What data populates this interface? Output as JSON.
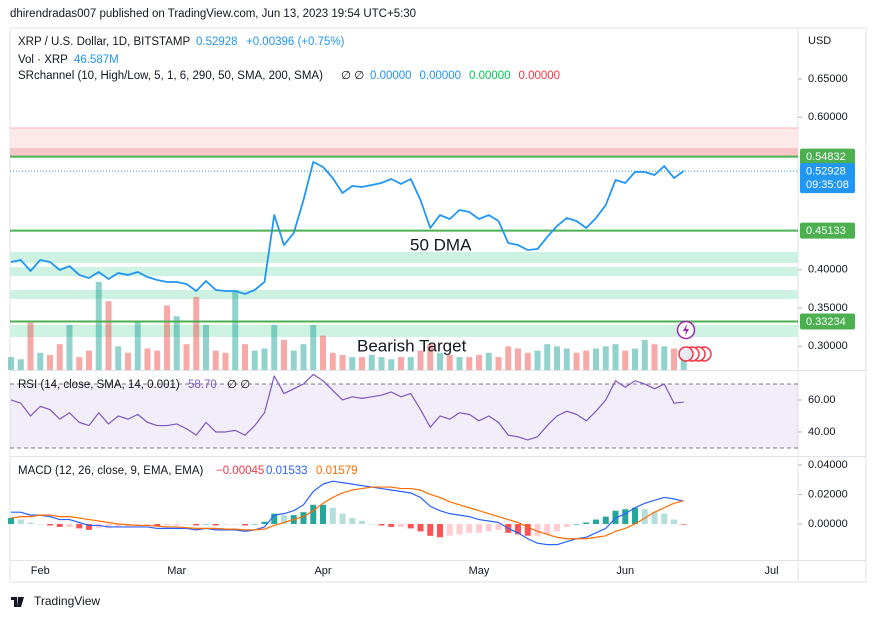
{
  "chart_data": {
    "type": "line",
    "publisher": "dhirendradas007 published on TradingView.com, Jun 13, 2023 19:54 UTC+5:30",
    "title": "XRP / U.S. Dollar, 1D, BITSTAMP",
    "last_price": "0.52928",
    "change": "+0.00396 (+0.75%)",
    "volume_legend": "Vol · XRP",
    "volume_last": "46.587M",
    "indicator_legend": "SRchannel (10, High/Low, 5, 1, 6, 290, 50, SMA, 200, SMA)",
    "indicator_flags": "∅ ∅",
    "indicator_values": [
      "0.00000",
      "0.00000",
      "0.00000",
      "0.00000"
    ],
    "indicator_colors": [
      "#2196f3",
      "#2196f3",
      "#00c853",
      "#f23645"
    ],
    "currency": "USD",
    "annotations": [
      "50 DMA",
      "Bearish Target"
    ],
    "footer": "TradingView",
    "grid": false,
    "categories": [
      null,
      null,
      null,
      "Feb",
      null,
      null,
      null,
      null,
      null,
      null,
      null,
      null,
      null,
      null,
      null,
      null,
      null,
      "Mar",
      null,
      null,
      null,
      null,
      null,
      null,
      null,
      null,
      null,
      null,
      null,
      null,
      null,
      null,
      "Apr",
      null,
      null,
      null,
      null,
      null,
      null,
      null,
      null,
      null,
      null,
      null,
      null,
      null,
      null,
      null,
      "May",
      null,
      null,
      null,
      null,
      null,
      null,
      null,
      null,
      null,
      null,
      null,
      null,
      null,
      null,
      "Jun",
      null,
      null,
      null,
      null,
      null,
      null,
      null,
      null,
      null,
      null,
      null,
      null,
      null,
      null,
      "Jul",
      null,
      null
    ],
    "series": [
      {
        "name": "XRP",
        "color": "#2196f3",
        "values": [
          0.4103,
          0.4129,
          0.3985,
          0.4129,
          0.4103,
          0.3998,
          0.405,
          0.3933,
          0.3893,
          0.3972,
          0.388,
          0.3959,
          0.3933,
          0.3972,
          0.3906,
          0.3867,
          0.3841,
          0.3841,
          0.3815,
          0.3723,
          0.3854,
          0.3736,
          0.3723,
          0.3723,
          0.3684,
          0.3736,
          0.3841,
          0.4718,
          0.4325,
          0.4483,
          0.4915,
          0.5413,
          0.5347,
          0.5203,
          0.5007,
          0.5098,
          0.5085,
          0.5111,
          0.5138,
          0.519,
          0.5125,
          0.519,
          0.4915,
          0.4548,
          0.4718,
          0.4666,
          0.4784,
          0.4758,
          0.4666,
          0.4718,
          0.464,
          0.4352,
          0.4325,
          0.426,
          0.4273,
          0.443,
          0.4574,
          0.4679,
          0.464,
          0.4548,
          0.4679,
          0.4849,
          0.5177,
          0.5138,
          0.5282,
          0.5282,
          0.5242,
          0.536,
          0.5203,
          0.52928,
          null,
          null,
          null,
          null,
          null,
          null,
          null,
          null,
          null,
          null,
          null
        ]
      }
    ],
    "volume": {
      "color_up": "rgba(38,166,154,0.5)",
      "color_down": "rgba(239,83,80,0.5)",
      "values": [
        30,
        25,
        110,
        40,
        35,
        60,
        105,
        30,
        45,
        205,
        160,
        55,
        40,
        115,
        50,
        45,
        150,
        125,
        60,
        170,
        105,
        45,
        40,
        185,
        60,
        45,
        50,
        105,
        70,
        45,
        60,
        105,
        80,
        40,
        35,
        30,
        30,
        35,
        30,
        25,
        30,
        30,
        45,
        60,
        40,
        35,
        30,
        30,
        35,
        40,
        30,
        55,
        50,
        40,
        45,
        60,
        55,
        50,
        40,
        45,
        50,
        55,
        60,
        45,
        50,
        70,
        60,
        55,
        50,
        46.587,
        null,
        null,
        null,
        null,
        null,
        null,
        null,
        null,
        null,
        null,
        null
      ]
    },
    "ylim": [
      0.2688,
      0.7168
    ],
    "yticks": [
      {
        "value": 0.65,
        "label": "0.65000"
      },
      {
        "value": 0.6,
        "label": "0.60000"
      },
      {
        "value": 0.4,
        "label": "0.40000"
      },
      {
        "value": 0.35,
        "label": "0.35000"
      },
      {
        "value": 0.3,
        "label": "0.30000"
      }
    ],
    "levels": [
      {
        "value": 0.54832,
        "color": "#4caf50"
      },
      {
        "value": 0.45133,
        "color": "#4caf50"
      },
      {
        "value": 0.33234,
        "color": "#4caf50"
      }
    ],
    "current_price": {
      "value": 0.52928,
      "countdown": "09:35:08",
      "color": "#2196f3"
    },
    "rsi": {
      "legend": "RSI (14, close, SMA, 14, 0.001)",
      "value_label": "58.70",
      "flags": "∅ ∅",
      "color": "#7e57c2",
      "values": [
        60,
        58,
        50,
        56,
        54,
        48,
        52,
        46,
        44,
        52,
        45,
        50,
        48,
        51,
        46,
        44,
        44,
        45,
        42,
        38,
        46,
        40,
        40,
        41,
        38,
        44,
        52,
        75,
        64,
        67,
        70,
        76,
        72,
        66,
        60,
        62,
        61,
        62,
        63,
        65,
        62,
        64,
        54,
        43,
        50,
        48,
        52,
        51,
        47,
        50,
        46,
        38,
        37,
        35,
        37,
        44,
        50,
        53,
        51,
        47,
        53,
        60,
        72,
        68,
        72,
        70,
        67,
        70,
        58,
        58.7,
        null,
        null,
        null,
        null,
        null,
        null,
        null,
        null,
        null,
        null,
        null
      ],
      "ylim": [
        25.6,
        77.5
      ],
      "yticks": [
        {
          "value": 60,
          "label": "60.00"
        },
        {
          "value": 40,
          "label": "40.00"
        }
      ],
      "bands": [
        70,
        30
      ]
    },
    "macd": {
      "legend": "MACD (12, 26, close, 9, EMA, EMA)",
      "value_labels": [
        "−0.00045",
        "0.01533",
        "0.01579"
      ],
      "label_colors": [
        "#f23645",
        "#2962ff",
        "#ff6d00"
      ],
      "macd": {
        "color": "#2962ff",
        "values": [
          0.008,
          0.008,
          0.006,
          0.006,
          0.005,
          0.003,
          0.003,
          0.001,
          -0.001,
          -0.001,
          -0.002,
          -0.002,
          -0.002,
          -0.002,
          -0.002,
          -0.003,
          -0.003,
          -0.003,
          -0.003,
          -0.004,
          -0.003,
          -0.004,
          -0.004,
          -0.004,
          -0.005,
          -0.004,
          -0.002,
          0.006,
          0.007,
          0.009,
          0.013,
          0.022,
          0.027,
          0.029,
          0.028,
          0.027,
          0.026,
          0.025,
          0.024,
          0.023,
          0.022,
          0.021,
          0.018,
          0.012,
          0.009,
          0.007,
          0.006,
          0.005,
          0.003,
          0.002,
          0.001,
          -0.003,
          -0.006,
          -0.01,
          -0.013,
          -0.014,
          -0.014,
          -0.012,
          -0.01,
          -0.009,
          -0.006,
          -0.003,
          0.004,
          0.007,
          0.011,
          0.014,
          0.016,
          0.018,
          0.017,
          0.01533,
          null,
          null,
          null,
          null,
          null,
          null,
          null,
          null,
          null,
          null,
          null
        ]
      },
      "signal": {
        "color": "#ff6d00",
        "values": [
          0.004,
          0.005,
          0.005,
          0.006,
          0.006,
          0.005,
          0.005,
          0.004,
          0.003,
          0.002,
          0.001,
          0,
          -0.0005,
          -0.001,
          -0.001,
          -0.0015,
          -0.002,
          -0.002,
          -0.0025,
          -0.003,
          -0.003,
          -0.003,
          -0.0035,
          -0.0035,
          -0.004,
          -0.004,
          -0.0035,
          -0.001,
          0.001,
          0.003,
          0.005,
          0.009,
          0.014,
          0.018,
          0.021,
          0.023,
          0.024,
          0.025,
          0.025,
          0.025,
          0.024,
          0.024,
          0.023,
          0.02,
          0.018,
          0.015,
          0.013,
          0.011,
          0.009,
          0.007,
          0.005,
          0.003,
          0.001,
          -0.002,
          -0.005,
          -0.007,
          -0.009,
          -0.01,
          -0.01,
          -0.01,
          -0.009,
          -0.008,
          -0.005,
          -0.003,
          0,
          0.004,
          0.008,
          0.011,
          0.014,
          0.01579,
          null,
          null,
          null,
          null,
          null,
          null,
          null,
          null,
          null,
          null,
          null
        ]
      },
      "histogram": {
        "colors": [
          "#26a69a",
          "#b2dfdb",
          "#ffcdd2",
          "#ff5252"
        ],
        "values": [
          0.004,
          0.003,
          0.001,
          0,
          -0.001,
          -0.002,
          -0.002,
          -0.003,
          -0.004,
          -0.003,
          -0.003,
          -0.002,
          -0.0015,
          -0.001,
          -0.001,
          -0.0015,
          -0.001,
          -0.001,
          -0.0005,
          -0.001,
          0,
          -0.001,
          -0.0005,
          -0.0005,
          -0.001,
          0,
          0.0015,
          0.007,
          0.006,
          0.006,
          0.008,
          0.013,
          0.013,
          0.011,
          0.007,
          0.004,
          0.002,
          0,
          -0.001,
          -0.002,
          -0.002,
          -0.003,
          -0.005,
          -0.008,
          -0.009,
          -0.008,
          -0.007,
          -0.006,
          -0.006,
          -0.005,
          -0.004,
          -0.006,
          -0.007,
          -0.008,
          -0.008,
          -0.007,
          -0.005,
          -0.002,
          0,
          0.001,
          0.003,
          0.005,
          0.009,
          0.01,
          0.011,
          0.01,
          0.008,
          0.007,
          0.003,
          -0.00045,
          null,
          null,
          null,
          null,
          null,
          null,
          null,
          null,
          null,
          null,
          null
        ]
      },
      "ylim": [
        -0.0244,
        0.0447
      ],
      "yticks": [
        {
          "value": 0.04,
          "label": "0.04000"
        },
        {
          "value": 0.02,
          "label": "0.02000"
        },
        {
          "value": 0,
          "label": "0.00000"
        }
      ]
    }
  }
}
